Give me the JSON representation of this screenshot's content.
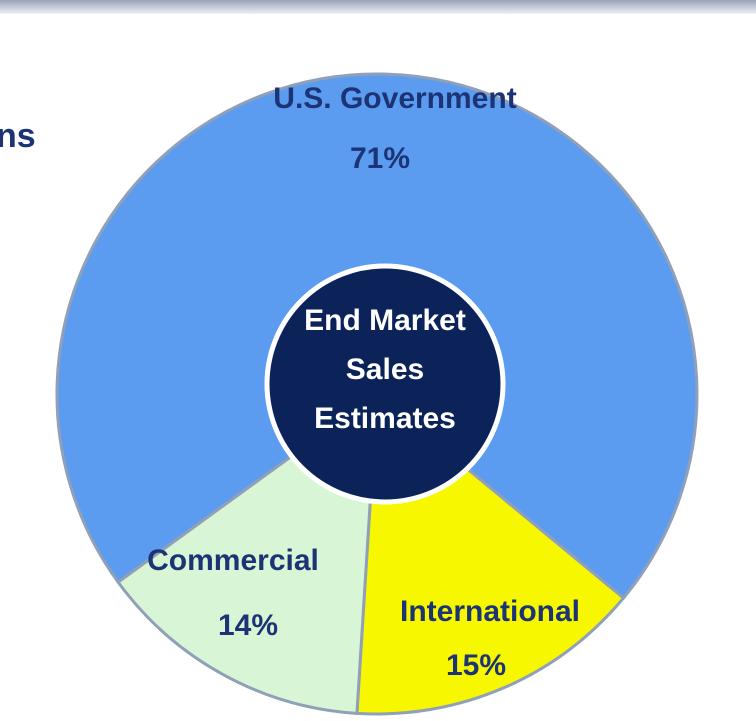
{
  "chart_data": {
    "type": "donut",
    "annotation": "ns",
    "center_label": [
      "End Market",
      "Sales",
      "Estimates"
    ],
    "categories": [
      "International",
      "Commercial",
      "U.S. Government"
    ],
    "values": [
      15,
      14,
      71
    ],
    "value_labels": [
      "15%",
      "14%",
      "71%"
    ],
    "colors": [
      "#f7f700",
      "#d8f6d6",
      "#5b9cf0"
    ]
  }
}
